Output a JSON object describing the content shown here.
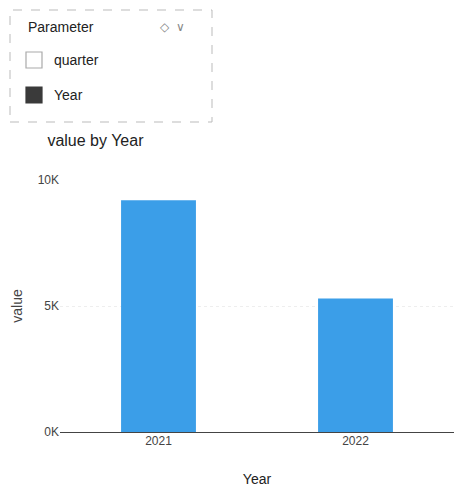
{
  "chart_data": {
    "type": "bar",
    "title": "value by Year",
    "xlabel": "Year",
    "ylabel": "value",
    "categories": [
      "2021",
      "2022"
    ],
    "values": [
      9200,
      5300
    ],
    "color": "#3B9EE8",
    "ylim": [
      0,
      10000
    ],
    "yticks": [
      {
        "value": 0,
        "label": "0K"
      },
      {
        "value": 5000,
        "label": "5K"
      },
      {
        "value": 10000,
        "label": "10K"
      }
    ],
    "grid": true,
    "annotations": [
      "Parameter",
      "◇  ∨",
      "quarter",
      "Year"
    ]
  }
}
